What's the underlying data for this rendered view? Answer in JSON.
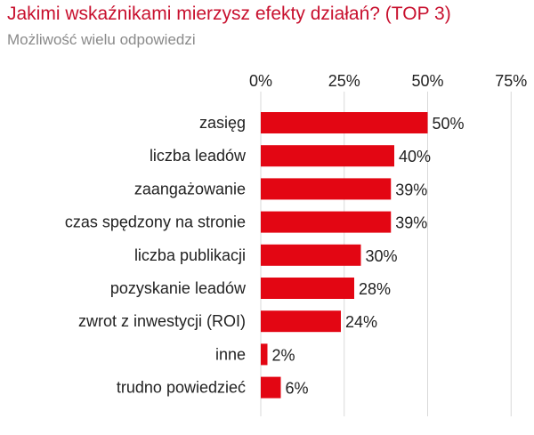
{
  "colors": {
    "title": "#c8102e",
    "subtitle": "#8a8a8a",
    "bar": "#e30613",
    "grid": "#d9d9d9",
    "text": "#222222"
  },
  "chart_data": {
    "type": "bar",
    "orientation": "horizontal",
    "title": "Jakimi wskaźnikami mierzysz efekty działań? (TOP 3)",
    "subtitle": "Możliwość wielu odpowiedzi",
    "categories": [
      "zasięg",
      "liczba leadów",
      "zaangażowanie",
      "czas spędzony na stronie",
      "liczba publikacji",
      "pozyskanie leadów",
      "zwrot z inwestycji (ROI)",
      "inne",
      "trudno powiedzieć"
    ],
    "values": [
      50,
      40,
      39,
      39,
      30,
      28,
      24,
      2,
      6
    ],
    "value_labels": [
      "50%",
      "40%",
      "39%",
      "39%",
      "30%",
      "28%",
      "24%",
      "2%",
      "6%"
    ],
    "xlim": [
      0,
      75
    ],
    "xticks": [
      0,
      25,
      50,
      75
    ],
    "xtick_labels": [
      "0%",
      "25%",
      "50%",
      "75%"
    ],
    "axis_position": "top",
    "grid": true,
    "legend": "none"
  }
}
